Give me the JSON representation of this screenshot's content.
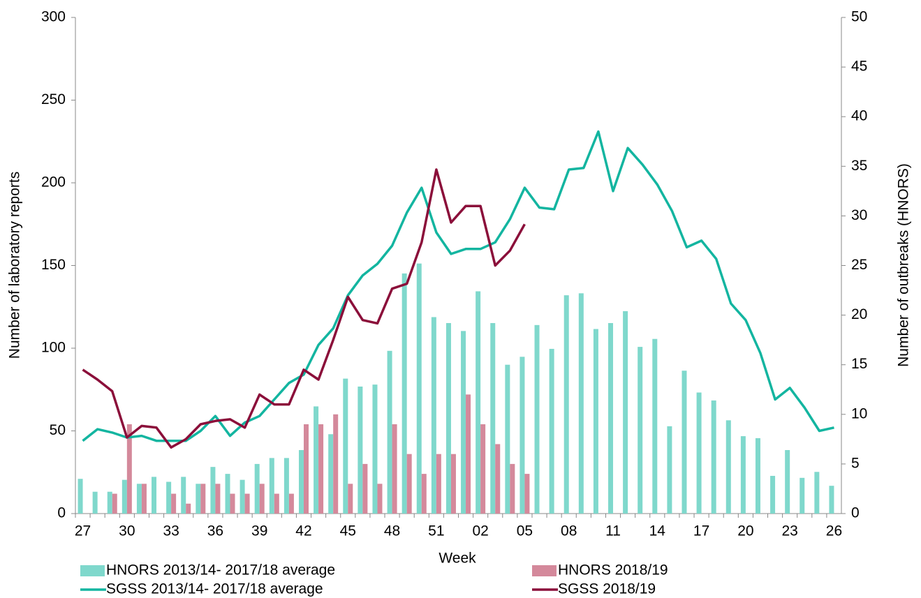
{
  "chart_data": {
    "type": "combo",
    "x_label": "Week",
    "y_label": "Number of laboratory reports",
    "y2_label": "Number of outbreaks (HNORS)",
    "categories": [
      "27",
      null,
      null,
      "30",
      null,
      null,
      "33",
      null,
      null,
      "36",
      null,
      null,
      "39",
      null,
      null,
      "42",
      null,
      null,
      "45",
      null,
      null,
      "48",
      null,
      null,
      "51",
      null,
      null,
      "02",
      null,
      null,
      "05",
      null,
      null,
      "08",
      null,
      null,
      "11",
      null,
      null,
      "14",
      null,
      null,
      "17",
      null,
      null,
      "20",
      null,
      null,
      "23",
      null,
      null,
      "26"
    ],
    "ylim": [
      0,
      300
    ],
    "yticks": [
      0,
      50,
      100,
      150,
      200,
      250,
      300
    ],
    "y2lim": [
      0,
      50
    ],
    "y2ticks": [
      0,
      5,
      10,
      15,
      20,
      25,
      30,
      35,
      40,
      45,
      50
    ],
    "series": [
      {
        "name": "HNORS 2013/14- 2017/18 average",
        "type": "bar",
        "axis": "y2",
        "color": "#7fd8cc",
        "values": [
          3.5,
          2.2,
          2.2,
          3.4,
          3,
          3.7,
          3.2,
          3.7,
          3,
          4.7,
          4,
          3.4,
          5,
          5.6,
          5.6,
          6.4,
          10.8,
          8,
          13.6,
          12.8,
          13,
          16.4,
          24.2,
          25.2,
          19.8,
          19.2,
          18.4,
          22.4,
          19.2,
          15,
          15.8,
          19,
          16.6,
          22,
          22.2,
          18.6,
          19.2,
          20.4,
          16.8,
          17.6,
          8.8,
          14.4,
          12.2,
          11.4,
          9.4,
          7.8,
          7.6,
          3.8,
          6.4,
          3.6,
          4.2,
          2.8
        ]
      },
      {
        "name": "HNORS 2018/19",
        "type": "bar",
        "axis": "y2",
        "color": "#d4899b",
        "values": [
          null,
          null,
          2,
          9,
          3,
          null,
          2,
          1,
          3,
          3,
          2,
          2,
          3,
          2,
          2,
          9,
          9,
          10,
          3,
          5,
          3,
          9,
          6,
          4,
          6,
          6,
          12,
          9,
          7,
          5,
          4,
          null,
          null,
          null,
          null,
          null,
          null,
          null,
          null,
          null,
          null,
          null,
          null,
          null,
          null,
          null,
          null,
          null,
          null,
          null,
          null,
          null
        ]
      },
      {
        "name": "SGSS 2013/14- 2017/18 average",
        "type": "line",
        "color": "#13b5a0",
        "values": [
          44,
          51,
          49,
          46,
          47,
          44,
          44,
          44,
          50,
          59,
          47,
          55,
          59,
          69,
          79,
          84,
          102,
          112,
          132,
          144,
          151,
          162,
          182,
          197,
          170,
          157,
          160,
          160,
          164,
          178,
          197,
          185,
          184,
          208,
          209,
          231,
          195,
          221,
          211,
          199,
          183,
          161,
          165,
          154,
          127,
          117,
          97,
          69,
          76,
          64,
          50,
          52
        ]
      },
      {
        "name": "SGSS 2018/19",
        "type": "line",
        "color": "#8b0f3a",
        "values": [
          87,
          81,
          74,
          46,
          53,
          52,
          40,
          45,
          54,
          56,
          57,
          52,
          72,
          66,
          66,
          87,
          81,
          105,
          131,
          117,
          115,
          136,
          139,
          164,
          208,
          176,
          186,
          186,
          150,
          159,
          175,
          null,
          null,
          null,
          null,
          null,
          null,
          null,
          null,
          null,
          null,
          null,
          null,
          null,
          null,
          null,
          null,
          null,
          null,
          null,
          null,
          null
        ]
      }
    ]
  }
}
